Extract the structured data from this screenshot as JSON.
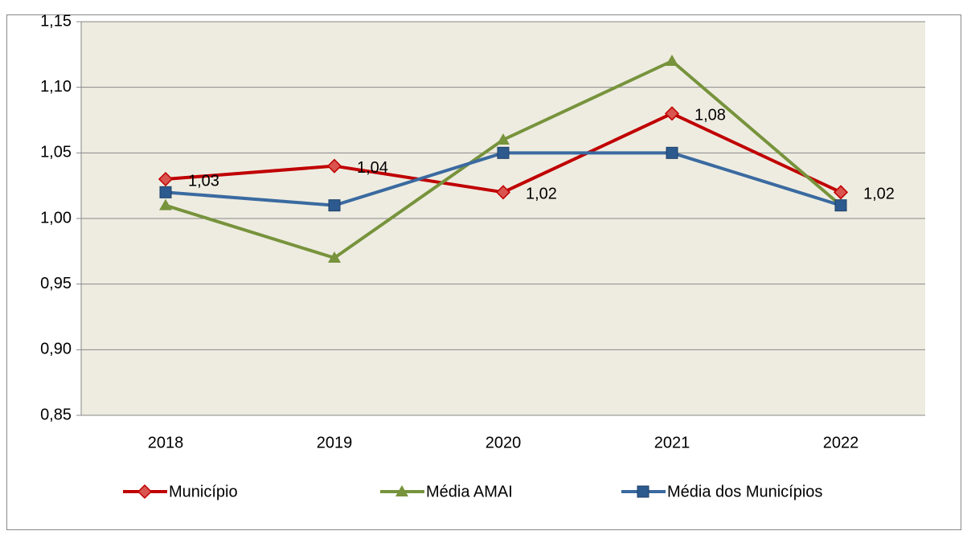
{
  "chart_data": {
    "type": "line",
    "categories": [
      "2018",
      "2019",
      "2020",
      "2021",
      "2022"
    ],
    "series": [
      {
        "name": "Município",
        "color": "#c00000",
        "marker_color": "#d9534f",
        "marker": "diamond",
        "values": [
          1.03,
          1.04,
          1.02,
          1.08,
          1.02
        ],
        "value_labels": [
          "1,03",
          "1,04",
          "1,02",
          "1,08",
          "1,02"
        ]
      },
      {
        "name": "Média AMAI",
        "color": "#77933c",
        "marker_color": "#77933c",
        "marker": "triangle",
        "values": [
          1.01,
          0.97,
          1.06,
          1.12,
          1.01
        ]
      },
      {
        "name": "Média dos Municípios",
        "color": "#3a6aa0",
        "marker_color": "#2c5a8e",
        "marker": "square",
        "values": [
          1.02,
          1.01,
          1.05,
          1.05,
          1.01
        ]
      }
    ],
    "ylim": [
      0.85,
      1.15
    ],
    "yticks": [
      {
        "value": 0.85,
        "label": "0,85"
      },
      {
        "value": 0.9,
        "label": "0,90"
      },
      {
        "value": 0.95,
        "label": "0,95"
      },
      {
        "value": 1.0,
        "label": "1,00"
      },
      {
        "value": 1.05,
        "label": "1,05"
      },
      {
        "value": 1.1,
        "label": "1,10"
      },
      {
        "value": 1.15,
        "label": "1,15"
      }
    ],
    "grid": true,
    "legend": "bottom",
    "plot_background": "#eeece1"
  }
}
